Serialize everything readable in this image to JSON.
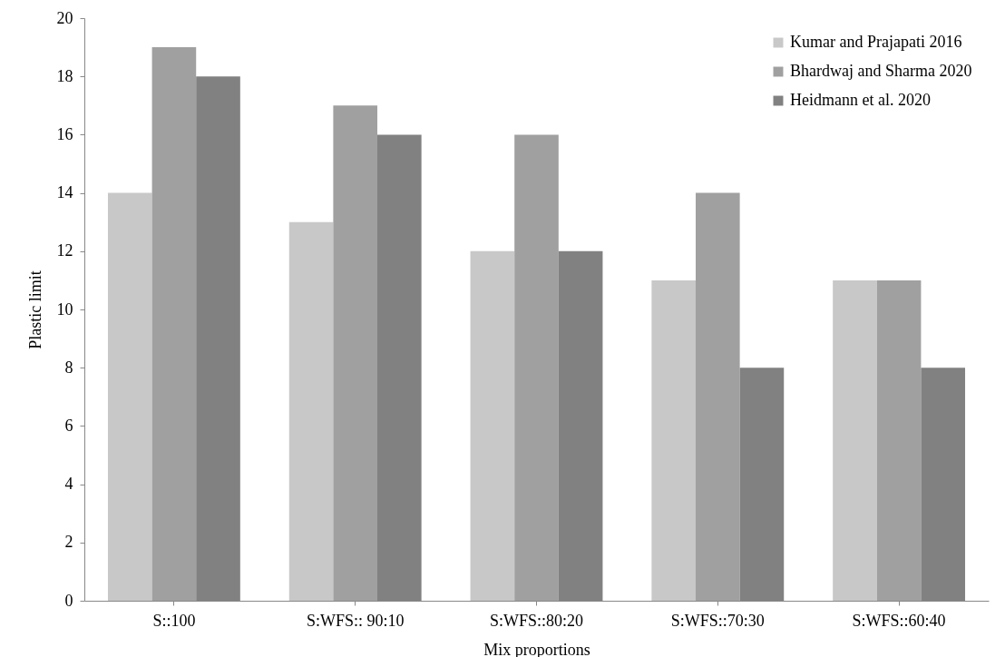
{
  "chart_data": {
    "type": "bar",
    "xlabel": "Mix proportions",
    "ylabel": "Plastic limit",
    "categories": [
      "S::100",
      "S:WFS:: 90:10",
      "S:WFS::80:20",
      "S:WFS::70:30",
      "S:WFS::60:40"
    ],
    "series": [
      {
        "name": "Kumar and Prajapati 2016",
        "color": "#c8c8c8",
        "values": [
          14,
          13,
          12,
          11,
          11
        ]
      },
      {
        "name": "Bhardwaj and Sharma 2020",
        "color": "#a0a0a0",
        "values": [
          19,
          17,
          16,
          14,
          11
        ]
      },
      {
        "name": "Heidmann et al. 2020",
        "color": "#818181",
        "values": [
          18,
          16,
          12,
          8,
          8
        ]
      }
    ],
    "ylim": [
      0,
      20
    ],
    "yticks": [
      0,
      2,
      4,
      6,
      8,
      10,
      12,
      14,
      16,
      18,
      20
    ],
    "grid": false,
    "legend": "top right"
  }
}
